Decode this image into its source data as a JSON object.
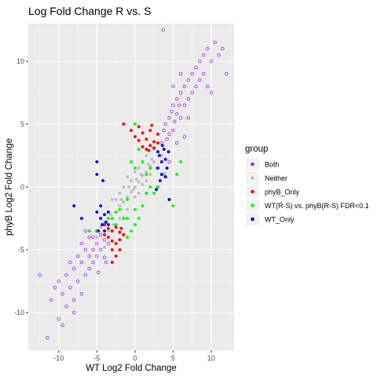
{
  "chart_data": {
    "type": "scatter",
    "title": "Log Fold Change R vs. S",
    "xlabel": "WT Log2 Fold Change",
    "ylabel": "phyB Log2 Fold Change",
    "xlim": [
      -14,
      13
    ],
    "ylim": [
      -13,
      13
    ],
    "x_ticks": [
      -10,
      -5,
      0,
      5,
      10
    ],
    "y_ticks": [
      -10,
      -5,
      0,
      5,
      10
    ],
    "x_tick_labels": [
      "-10",
      "-5",
      "0",
      "5",
      "10"
    ],
    "y_tick_labels": [
      "-10",
      "-5",
      "0",
      "5",
      "10"
    ],
    "background": "#EBEBEB",
    "grid": true,
    "legend": {
      "title": "group",
      "position": "right",
      "entries": [
        "Both",
        "Neither",
        "phyB_Only",
        "WT(R-S)  vs.  phyB(R-S)  FDR<0.1",
        "WT_Only"
      ]
    },
    "series": [
      {
        "name": "Both",
        "color": "#A020F0",
        "marker": "circle-open",
        "points": [
          [
            -12.5,
            -7
          ],
          [
            -11.5,
            -12
          ],
          [
            -11,
            -9
          ],
          [
            -10.5,
            -8
          ],
          [
            -10,
            -7.5
          ],
          [
            -10,
            -10.5
          ],
          [
            -9.5,
            -8.5
          ],
          [
            -9,
            -7
          ],
          [
            -9,
            -9.5
          ],
          [
            -8.5,
            -6
          ],
          [
            -8.5,
            -8
          ],
          [
            -8,
            -6.5
          ],
          [
            -8,
            -9
          ],
          [
            -7.5,
            -5.5
          ],
          [
            -7.5,
            -7.5
          ],
          [
            -7,
            -4.5
          ],
          [
            -7,
            -6
          ],
          [
            -7,
            -8.5
          ],
          [
            -6.5,
            -5
          ],
          [
            -6.5,
            -7
          ],
          [
            -6,
            -4
          ],
          [
            -6,
            -5.5
          ],
          [
            -6,
            -6.5
          ],
          [
            -5.5,
            -4
          ],
          [
            -5.5,
            -5
          ],
          [
            -5.5,
            -6
          ],
          [
            -5,
            -3.5
          ],
          [
            -5,
            -4.5
          ],
          [
            -5,
            -5.5
          ],
          [
            -4.5,
            -3.8
          ],
          [
            -4.5,
            -5
          ],
          [
            -4,
            -4.2
          ],
          [
            -4,
            -5.6
          ],
          [
            -3.5,
            -4.5
          ],
          [
            -9.5,
            -11
          ],
          [
            -8,
            -10
          ],
          [
            -6.5,
            -3.5
          ],
          [
            -4.8,
            -6.8
          ],
          [
            -3.8,
            -6
          ],
          [
            3.5,
            3.5
          ],
          [
            3.8,
            4.5
          ],
          [
            4,
            5
          ],
          [
            4.2,
            3.8
          ],
          [
            4.5,
            5.5
          ],
          [
            4.5,
            4.2
          ],
          [
            4.8,
            6
          ],
          [
            5,
            4.5
          ],
          [
            5,
            6.5
          ],
          [
            5.2,
            5.2
          ],
          [
            5.5,
            7
          ],
          [
            5.5,
            5.8
          ],
          [
            5.8,
            6.5
          ],
          [
            6,
            7.5
          ],
          [
            6,
            5.5
          ],
          [
            6.5,
            8
          ],
          [
            6.5,
            6.5
          ],
          [
            7,
            8.5
          ],
          [
            7,
            7
          ],
          [
            7.5,
            9
          ],
          [
            7.5,
            7.5
          ],
          [
            8,
            9.5
          ],
          [
            8,
            8
          ],
          [
            8.5,
            10
          ],
          [
            8.5,
            8.5
          ],
          [
            9,
            10.5
          ],
          [
            9,
            9
          ],
          [
            9.5,
            11
          ],
          [
            10,
            10
          ],
          [
            10.5,
            11.5
          ],
          [
            11,
            10.5
          ],
          [
            12,
            9
          ],
          [
            11.5,
            11
          ],
          [
            10,
            7.5
          ],
          [
            9.5,
            8
          ],
          [
            3.8,
            1
          ],
          [
            4.5,
            2
          ],
          [
            5.5,
            3.5
          ],
          [
            6.5,
            4
          ],
          [
            7,
            5.5
          ],
          [
            3.7,
            12.5
          ],
          [
            5,
            8
          ],
          [
            6,
            9
          ]
        ]
      },
      {
        "name": "Neither",
        "color": "#BEBEBE",
        "marker": "circle",
        "points": [
          [
            -3,
            -2.5
          ],
          [
            -2.5,
            -2
          ],
          [
            -2,
            -1.5
          ],
          [
            -1.5,
            -1.2
          ],
          [
            -1,
            -0.8
          ],
          [
            -0.5,
            -0.4
          ],
          [
            0,
            0
          ],
          [
            0.5,
            0.4
          ],
          [
            1,
            0.9
          ],
          [
            1.5,
            1.2
          ],
          [
            2,
            1.6
          ],
          [
            2.5,
            2
          ],
          [
            -2,
            -2.5
          ],
          [
            -1,
            -1.8
          ],
          [
            0,
            -0.8
          ],
          [
            1,
            0.2
          ],
          [
            2,
            1
          ],
          [
            -2.5,
            -1
          ],
          [
            -1.5,
            0
          ],
          [
            -0.5,
            0.5
          ],
          [
            0.5,
            1.5
          ],
          [
            1.5,
            2.5
          ],
          [
            -3.5,
            -2
          ],
          [
            -3,
            -1
          ],
          [
            -1,
            0.8
          ],
          [
            0,
            1.2
          ],
          [
            1,
            2
          ],
          [
            -2,
            -0.5
          ],
          [
            -4,
            -2.8
          ],
          [
            -4.5,
            -3.2
          ],
          [
            2.5,
            3
          ],
          [
            3,
            2.8
          ],
          [
            -3.5,
            -3.5
          ],
          [
            -1.5,
            -2.5
          ],
          [
            0.5,
            -0.5
          ],
          [
            1.5,
            0.5
          ],
          [
            2.8,
            1.5
          ],
          [
            -5,
            -4
          ],
          [
            -4,
            -4.8
          ],
          [
            3.5,
            2.5
          ],
          [
            -0.8,
            0
          ],
          [
            0.2,
            0.6
          ],
          [
            -2.8,
            -3
          ],
          [
            -1.8,
            -1
          ],
          [
            0.8,
            1
          ],
          [
            1.8,
            1.8
          ],
          [
            -3.2,
            -2.2
          ],
          [
            2.2,
            2.2
          ],
          [
            -0.2,
            -0.2
          ]
        ]
      },
      {
        "name": "phyB_Only",
        "color": "#FF0000",
        "marker": "circle",
        "points": [
          [
            -1.5,
            5
          ],
          [
            -0.5,
            4.5
          ],
          [
            0,
            4
          ],
          [
            0.5,
            4.8
          ],
          [
            1,
            4.3
          ],
          [
            1.5,
            3.8
          ],
          [
            2,
            4.5
          ],
          [
            2.5,
            3.6
          ],
          [
            3,
            4.2
          ],
          [
            1,
            3.2
          ],
          [
            1.5,
            3
          ],
          [
            2,
            3.3
          ],
          [
            2.5,
            3.1
          ],
          [
            3,
            3.5
          ],
          [
            2.2,
            4.9
          ],
          [
            0.5,
            3.7
          ],
          [
            1.8,
            2.9
          ],
          [
            -4,
            -3
          ],
          [
            -3.5,
            -3.3
          ],
          [
            -3,
            -3.5
          ],
          [
            -2.5,
            -3.2
          ],
          [
            -2,
            -3.6
          ],
          [
            -3.5,
            -4
          ],
          [
            -3,
            -4.3
          ],
          [
            -2.5,
            -4.5
          ],
          [
            -2,
            -4.2
          ],
          [
            -1.5,
            -3.8
          ],
          [
            -3,
            -5
          ],
          [
            -2.5,
            -5.5
          ],
          [
            -2,
            -5
          ],
          [
            -3,
            -6
          ],
          [
            -4,
            -3.8
          ],
          [
            -1.8,
            -3.3
          ]
        ]
      },
      {
        "name": "WT(R-S)  vs.  phyB(R-S)  FDR<0.1",
        "color": "#00FF00",
        "marker": "circle",
        "points": [
          [
            0,
            5
          ],
          [
            0.5,
            3
          ],
          [
            1,
            2
          ],
          [
            1.5,
            1
          ],
          [
            2,
            0
          ],
          [
            2.5,
            -0.5
          ],
          [
            -0.5,
            2
          ],
          [
            0,
            1.5
          ],
          [
            -1,
            -1
          ],
          [
            -1.5,
            -2.5
          ],
          [
            -2,
            -1.8
          ],
          [
            -1,
            -2.5
          ],
          [
            0,
            -1.8
          ],
          [
            0.5,
            -2.5
          ],
          [
            -2.5,
            -3
          ],
          [
            1.5,
            -0.5
          ],
          [
            2,
            1.5
          ],
          [
            -3,
            -2.5
          ],
          [
            -2.5,
            -2
          ],
          [
            -5,
            -3.5
          ],
          [
            -6,
            -3.5
          ],
          [
            3,
            0
          ],
          [
            4.5,
            -1
          ],
          [
            5,
            -1.5
          ],
          [
            5.5,
            1
          ],
          [
            0,
            -3
          ],
          [
            -1,
            -4
          ],
          [
            -0.5,
            -3.5
          ],
          [
            1,
            -1.5
          ],
          [
            -3.5,
            -2.5
          ],
          [
            6,
            2
          ]
        ]
      },
      {
        "name": "WT_Only",
        "color": "#0000FF",
        "marker": "circle",
        "points": [
          [
            3,
            1.5
          ],
          [
            3.5,
            2
          ],
          [
            3.2,
            2.5
          ],
          [
            3.8,
            3
          ],
          [
            4,
            2.2
          ],
          [
            3.5,
            1
          ],
          [
            4.2,
            1.5
          ],
          [
            3.3,
            0.5
          ],
          [
            4,
            0.8
          ],
          [
            3.6,
            3.3
          ],
          [
            4.4,
            2.8
          ],
          [
            3,
            2.8
          ],
          [
            4.5,
            -1
          ],
          [
            -5,
            -2
          ],
          [
            -4.5,
            -2.5
          ],
          [
            -4,
            -2.2
          ],
          [
            -4.8,
            -3.5
          ],
          [
            -4.3,
            -3
          ],
          [
            -3.5,
            -3
          ],
          [
            -4,
            -3.5
          ],
          [
            -4.5,
            -1.5
          ],
          [
            -3.8,
            -2.8
          ],
          [
            -3.5,
            -2
          ],
          [
            -8,
            -1.5
          ],
          [
            -7,
            -2.5
          ],
          [
            -5,
            1
          ],
          [
            -5,
            2
          ],
          [
            -4.2,
            0.5
          ],
          [
            2.8,
            -0.2
          ]
        ]
      }
    ]
  }
}
